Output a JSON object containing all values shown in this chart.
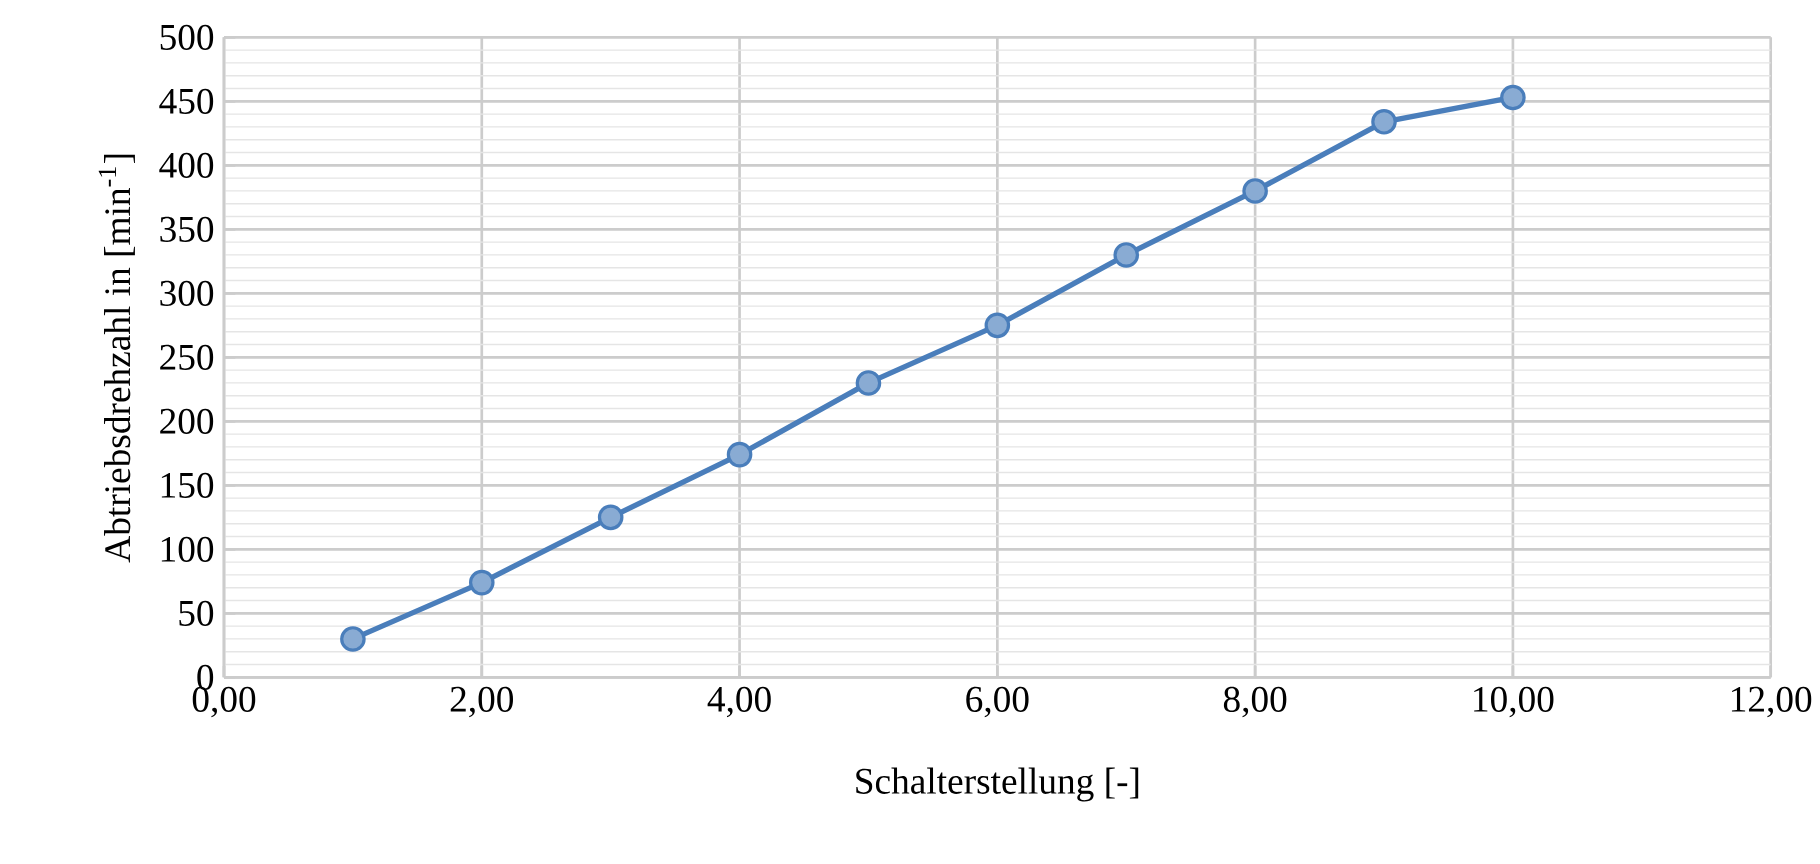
{
  "chart_data": {
    "type": "line",
    "xlabel": "Schalterstellung [-]",
    "ylabel": "Abtriebsdrehzahl in [min$^{-1}$]",
    "x": [
      1,
      2,
      3,
      4,
      5,
      6,
      7,
      8,
      9,
      10
    ],
    "series": [
      {
        "color": "#4a7ebb",
        "values": [
          30,
          74,
          125,
          174,
          230,
          275,
          330,
          380,
          434,
          453
        ]
      }
    ],
    "xlim": [
      0,
      12
    ],
    "xticks": [
      {
        "value": 0,
        "label": "0,00"
      },
      {
        "value": 2,
        "label": "2,00"
      },
      {
        "value": 4,
        "label": "4,00"
      },
      {
        "value": 6,
        "label": "6,00"
      },
      {
        "value": 8,
        "label": "8,00"
      },
      {
        "value": 10,
        "label": "10,00"
      },
      {
        "value": 12,
        "label": "12,00"
      }
    ],
    "ylim": [
      0,
      500
    ],
    "yticks": [
      0,
      50,
      100,
      150,
      200,
      250,
      300,
      350,
      400,
      450,
      500
    ],
    "grid": true,
    "marker": "circle",
    "line_style": "solid"
  }
}
